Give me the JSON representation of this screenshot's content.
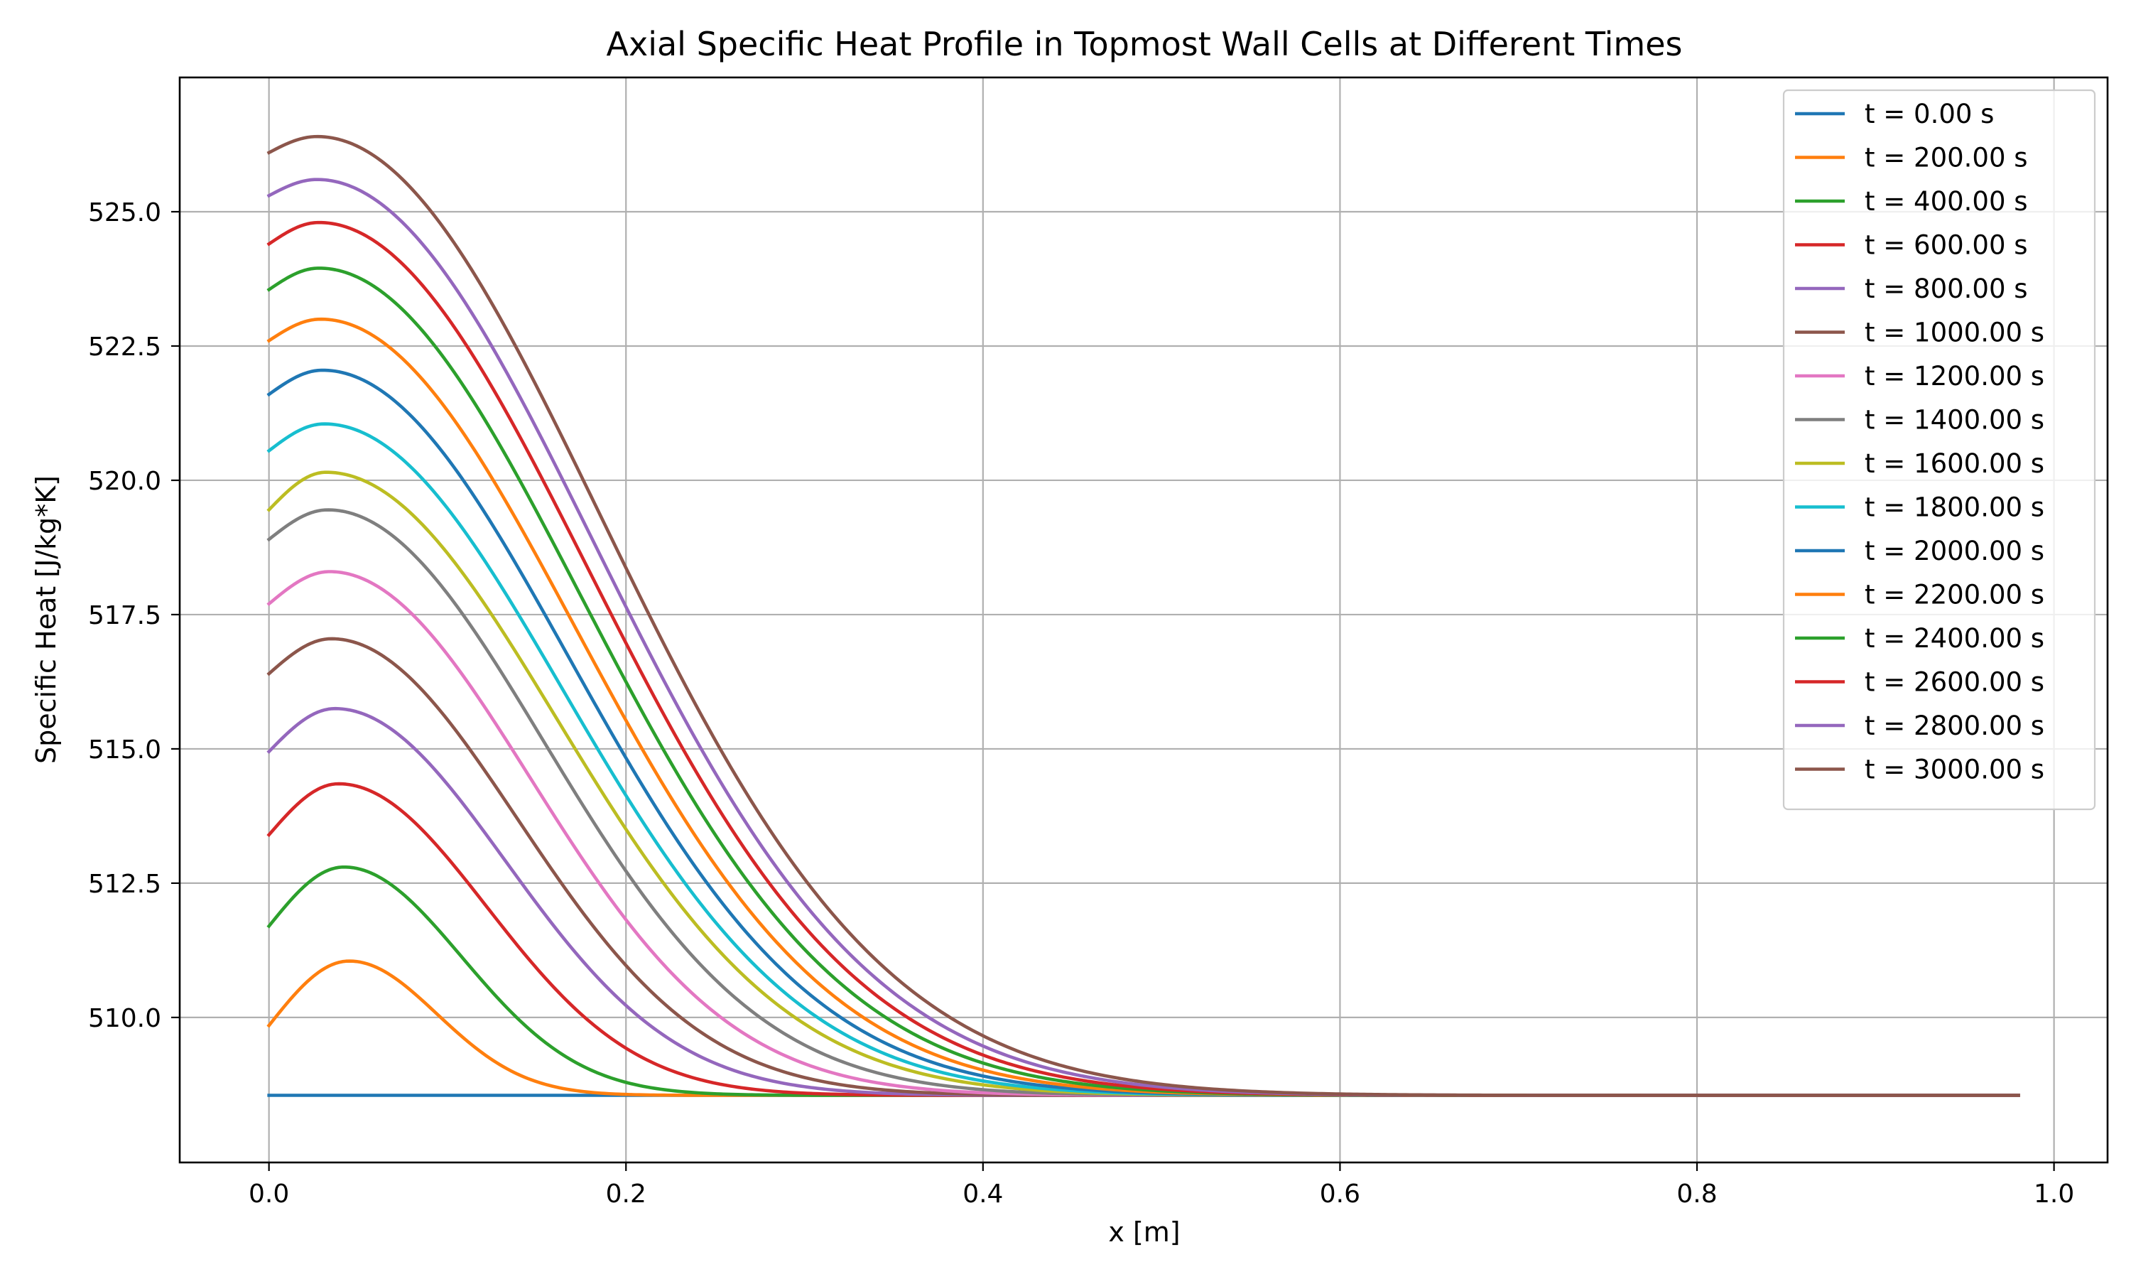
{
  "chart_data": {
    "type": "line",
    "title": "Axial Specific Heat Profile in Topmost Wall Cells at Different Times",
    "xlabel": "x [m]",
    "ylabel": "Specific Heat [J/kg*K]",
    "xlim": [
      -0.05,
      1.03
    ],
    "ylim": [
      507.3,
      527.5
    ],
    "xticks": [
      0.0,
      0.2,
      0.4,
      0.6,
      0.8,
      1.0
    ],
    "xtick_labels": [
      "0.0",
      "0.2",
      "0.4",
      "0.6",
      "0.8",
      "1.0"
    ],
    "yticks": [
      510.0,
      512.5,
      515.0,
      517.5,
      520.0,
      522.5,
      525.0
    ],
    "ytick_labels": [
      "510.0",
      "512.5",
      "515.0",
      "517.5",
      "520.0",
      "522.5",
      "525.0"
    ],
    "grid": true,
    "legend_position": "top-right",
    "x_range": [
      0.0,
      0.98
    ],
    "baseline": 508.55,
    "series": [
      {
        "name": "t = 0.00 s",
        "color": "#1f77b4",
        "start": 508.55,
        "peak": 508.55,
        "peak_x": 0.04,
        "tail_end_x": 0.1
      },
      {
        "name": "t = 200.00 s",
        "color": "#ff7f0e",
        "start": 509.85,
        "peak": 511.05,
        "peak_x": 0.045,
        "tail_end_x": 0.17
      },
      {
        "name": "t = 400.00 s",
        "color": "#2ca02c",
        "start": 511.7,
        "peak": 512.8,
        "peak_x": 0.042,
        "tail_end_x": 0.21
      },
      {
        "name": "t = 600.00 s",
        "color": "#d62728",
        "start": 513.4,
        "peak": 514.35,
        "peak_x": 0.039,
        "tail_end_x": 0.25
      },
      {
        "name": "t = 800.00 s",
        "color": "#9467bd",
        "start": 514.95,
        "peak": 515.75,
        "peak_x": 0.037,
        "tail_end_x": 0.28
      },
      {
        "name": "t = 1000.00 s",
        "color": "#8c564b",
        "start": 516.4,
        "peak": 517.05,
        "peak_x": 0.035,
        "tail_end_x": 0.3
      },
      {
        "name": "t = 1200.00 s",
        "color": "#e377c2",
        "start": 517.7,
        "peak": 518.3,
        "peak_x": 0.034,
        "tail_end_x": 0.32
      },
      {
        "name": "t = 1400.00 s",
        "color": "#7f7f7f",
        "start": 518.9,
        "peak": 519.45,
        "peak_x": 0.033,
        "tail_end_x": 0.34
      },
      {
        "name": "t = 1600.00 s",
        "color": "#bcbd22",
        "start": 519.45,
        "peak": 520.15,
        "peak_x": 0.032,
        "tail_end_x": 0.36
      },
      {
        "name": "t = 1800.00 s",
        "color": "#17becf",
        "start": 520.55,
        "peak": 521.05,
        "peak_x": 0.031,
        "tail_end_x": 0.37
      },
      {
        "name": "t = 2000.00 s",
        "color": "#1f77b4",
        "start": 521.6,
        "peak": 522.05,
        "peak_x": 0.03,
        "tail_end_x": 0.38
      },
      {
        "name": "t = 2200.00 s",
        "color": "#ff7f0e",
        "start": 522.6,
        "peak": 523.0,
        "peak_x": 0.029,
        "tail_end_x": 0.39
      },
      {
        "name": "t = 2400.00 s",
        "color": "#2ca02c",
        "start": 523.55,
        "peak": 523.95,
        "peak_x": 0.028,
        "tail_end_x": 0.4
      },
      {
        "name": "t = 2600.00 s",
        "color": "#d62728",
        "start": 524.4,
        "peak": 524.8,
        "peak_x": 0.028,
        "tail_end_x": 0.41
      },
      {
        "name": "t = 2800.00 s",
        "color": "#9467bd",
        "start": 525.3,
        "peak": 525.6,
        "peak_x": 0.027,
        "tail_end_x": 0.42
      },
      {
        "name": "t = 3000.00 s",
        "color": "#8c564b",
        "start": 526.1,
        "peak": 526.4,
        "peak_x": 0.027,
        "tail_end_x": 0.43
      }
    ]
  }
}
